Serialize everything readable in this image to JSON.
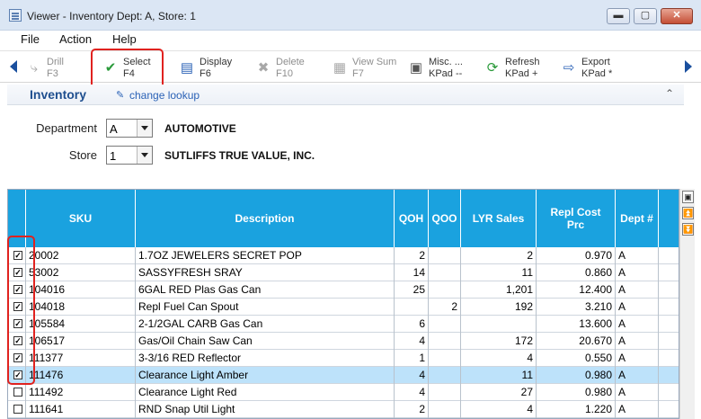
{
  "window": {
    "title": "Viewer - Inventory  Dept: A, Store: 1",
    "minimize": "▬",
    "maximize": "▢",
    "close": "✕"
  },
  "menu": [
    "File",
    "Action",
    "Help"
  ],
  "toolbar": [
    {
      "label": "Drill",
      "key": "F3",
      "icon": "drill-icon",
      "glyph": "⤷",
      "enabled": false
    },
    {
      "label": "Select",
      "key": "F4",
      "icon": "checkmark-icon",
      "glyph": "✔",
      "enabled": true
    },
    {
      "label": "Display",
      "key": "F6",
      "icon": "display-icon",
      "glyph": "▤",
      "enabled": true
    },
    {
      "label": "Delete",
      "key": "F10",
      "icon": "delete-icon",
      "glyph": "✖",
      "enabled": false
    },
    {
      "label": "View Sum",
      "key": "F7",
      "icon": "view-sum-icon",
      "glyph": "▦",
      "enabled": false
    },
    {
      "label": "Misc. ...",
      "key": "KPad --",
      "icon": "misc-icon",
      "glyph": "▣",
      "enabled": true
    },
    {
      "label": "Refresh",
      "key": "KPad +",
      "icon": "refresh-icon",
      "glyph": "⟳",
      "enabled": true
    },
    {
      "label": "Export",
      "key": "KPad *",
      "icon": "export-icon",
      "glyph": "⇨",
      "enabled": true
    }
  ],
  "section": {
    "title": "Inventory",
    "change_link": "change lookup",
    "collapse_glyph": "⌃"
  },
  "form": {
    "department_label": "Department",
    "department_value": "A",
    "department_name": "AUTOMOTIVE",
    "store_label": "Store",
    "store_value": "1",
    "store_name": "SUTLIFFS TRUE VALUE, INC."
  },
  "grid": {
    "columns": [
      "",
      "SKU",
      "Description",
      "QOH",
      "QOO",
      "LYR Sales",
      "Repl Cost Prc",
      "Dept #"
    ],
    "rows": [
      {
        "checked": true,
        "sku": "20002",
        "desc": "1.7OZ JEWELERS SECRET POP",
        "qoh": "2",
        "qoo": "",
        "lyr": "2",
        "cost": "0.970",
        "dept": "A",
        "selected": false
      },
      {
        "checked": true,
        "sku": "53002",
        "desc": "SASSYFRESH SRAY",
        "qoh": "14",
        "qoo": "",
        "lyr": "11",
        "cost": "0.860",
        "dept": "A",
        "selected": false
      },
      {
        "checked": true,
        "sku": "104016",
        "desc": "6GAL RED Plas Gas Can",
        "qoh": "25",
        "qoo": "",
        "lyr": "1,201",
        "cost": "12.400",
        "dept": "A",
        "selected": false
      },
      {
        "checked": true,
        "sku": "104018",
        "desc": "Repl Fuel Can Spout",
        "qoh": "",
        "qoo": "2",
        "lyr": "192",
        "cost": "3.210",
        "dept": "A",
        "selected": false
      },
      {
        "checked": true,
        "sku": "105584",
        "desc": "2-1/2GAL CARB Gas Can",
        "qoh": "6",
        "qoo": "",
        "lyr": "",
        "cost": "13.600",
        "dept": "A",
        "selected": false
      },
      {
        "checked": true,
        "sku": "106517",
        "desc": "Gas/Oil Chain Saw Can",
        "qoh": "4",
        "qoo": "",
        "lyr": "172",
        "cost": "20.670",
        "dept": "A",
        "selected": false
      },
      {
        "checked": true,
        "sku": "111377",
        "desc": "3-3/16 RED Reflector",
        "qoh": "1",
        "qoo": "",
        "lyr": "4",
        "cost": "0.550",
        "dept": "A",
        "selected": false
      },
      {
        "checked": true,
        "sku": "111476",
        "desc": "Clearance Light Amber",
        "qoh": "4",
        "qoo": "",
        "lyr": "11",
        "cost": "0.980",
        "dept": "A",
        "selected": true
      },
      {
        "checked": false,
        "sku": "111492",
        "desc": "Clearance Light Red",
        "qoh": "4",
        "qoo": "",
        "lyr": "27",
        "cost": "0.980",
        "dept": "A",
        "selected": false
      },
      {
        "checked": false,
        "sku": "111641",
        "desc": "RND Snap Util Light",
        "qoh": "2",
        "qoo": "",
        "lyr": "4",
        "cost": "1.220",
        "dept": "A",
        "selected": false
      }
    ]
  },
  "scroll": {
    "buttons": [
      "▣",
      "⏫",
      "⏬"
    ]
  },
  "colors": {
    "header_blue": "#1aa2df",
    "selected_row": "#bde2fa",
    "highlight_red": "#e0221f",
    "nav_blue": "#1a4f9e"
  }
}
